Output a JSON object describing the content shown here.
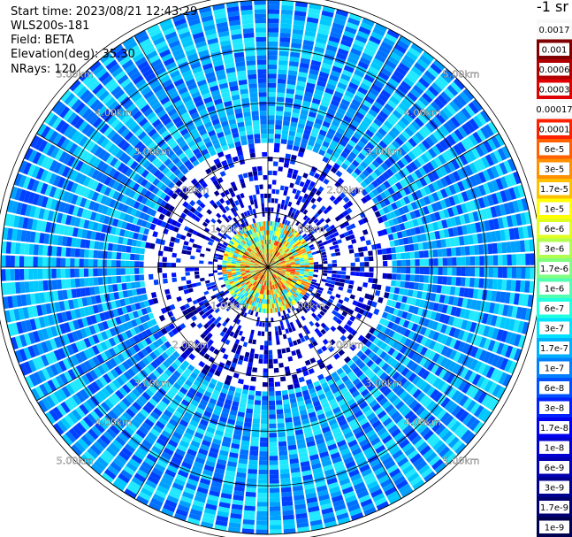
{
  "header": {
    "start_time": "Start time: 2023/08/21 12:43:29",
    "instrument": "WLS200s-181",
    "field": "Field: BETA",
    "elevation": "Elevation(deg): 35.30",
    "nrays": "NRays: 120"
  },
  "colorbar": {
    "unit": "-1 sr",
    "labels": [
      "0.0017",
      "0.001",
      "0.0006",
      "0.0003",
      "0.00017",
      "0.0001",
      "6e-5",
      "3e-5",
      "1.7e-5",
      "1e-5",
      "6e-6",
      "3e-6",
      "1.7e-6",
      "1e-6",
      "6e-7",
      "3e-7",
      "1.7e-7",
      "1e-7",
      "6e-8",
      "3e-8",
      "1.7e-8",
      "1e-8",
      "6e-9",
      "3e-9",
      "1.7e-9",
      "1e-9"
    ],
    "colors": [
      "#ffffff",
      "#800000",
      "#b00000",
      "#e00000",
      "#ffffff",
      "#ff2000",
      "#ff6000",
      "#ff9000",
      "#ffc000",
      "#ffff00",
      "#e0ff20",
      "#b0ff50",
      "#80ff80",
      "#50ffb0",
      "#20ffe0",
      "#00e0ff",
      "#00b0ff",
      "#0080ff",
      "#0050ff",
      "#0020ff",
      "#0000f0",
      "#0000d0",
      "#0000b0",
      "#000090",
      "#000070",
      "#000050"
    ]
  },
  "chart_data": {
    "type": "heatmap",
    "projection": "polar PPI",
    "rings_km": [
      1.0,
      2.0,
      3.0,
      4.0,
      5.0
    ],
    "ring_labels": [
      "1.00km",
      "2.00km",
      "3.00km",
      "4.00km",
      "5.00km"
    ],
    "n_rays": 120,
    "elevation_deg": 35.3,
    "max_range_km": 5.8,
    "field": "BETA",
    "colorscale": "log",
    "vmin": 1e-09,
    "vmax": 0.0017
  }
}
